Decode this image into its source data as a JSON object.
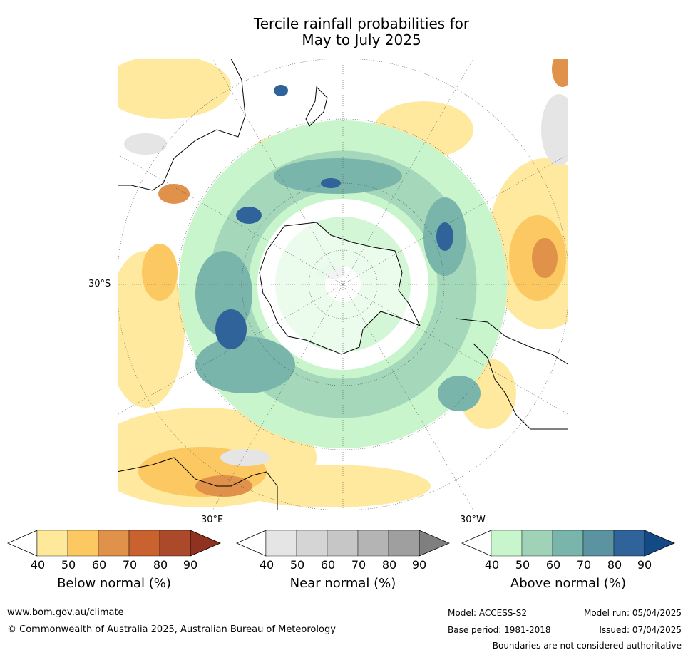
{
  "title_line1": "Tercile rainfall probabilities for",
  "title_line2": "May to July 2025",
  "map_labels": {
    "lat_30s": "30°S",
    "lon_30e": "30°E",
    "lon_30w": "30°W"
  },
  "colorbars": [
    {
      "label": "Below normal (%)",
      "ticks": [
        "40",
        "50",
        "60",
        "70",
        "80",
        "90"
      ],
      "colors": [
        "#ffffff",
        "#fee89a",
        "#fbc861",
        "#e0914a",
        "#c9622f",
        "#ab4a2a",
        "#8f321f"
      ]
    },
    {
      "label": "Near normal (%)",
      "ticks": [
        "40",
        "50",
        "60",
        "70",
        "80",
        "90"
      ],
      "colors": [
        "#ffffff",
        "#e5e5e5",
        "#d5d5d5",
        "#c6c6c6",
        "#b4b4b4",
        "#9f9f9f",
        "#7f7f7f"
      ]
    },
    {
      "label": "Above normal (%)",
      "ticks": [
        "40",
        "50",
        "60",
        "70",
        "80",
        "90"
      ],
      "colors": [
        "#ffffff",
        "#c8f5cc",
        "#9fd2b7",
        "#79b5aa",
        "#5b93a0",
        "#31639b",
        "#134a85"
      ]
    }
  ],
  "footer": {
    "website": "www.bom.gov.au/climate",
    "copyright": "© Commonwealth of Australia 2025, Australian Bureau of Meteorology",
    "model": "Model: ACCESS-S2",
    "base_period": "Base period: 1981-2018",
    "model_run": "Model run: 05/04/2025",
    "issued": "Issued: 07/04/2025",
    "disclaimer": "Boundaries are not considered authoritative"
  }
}
